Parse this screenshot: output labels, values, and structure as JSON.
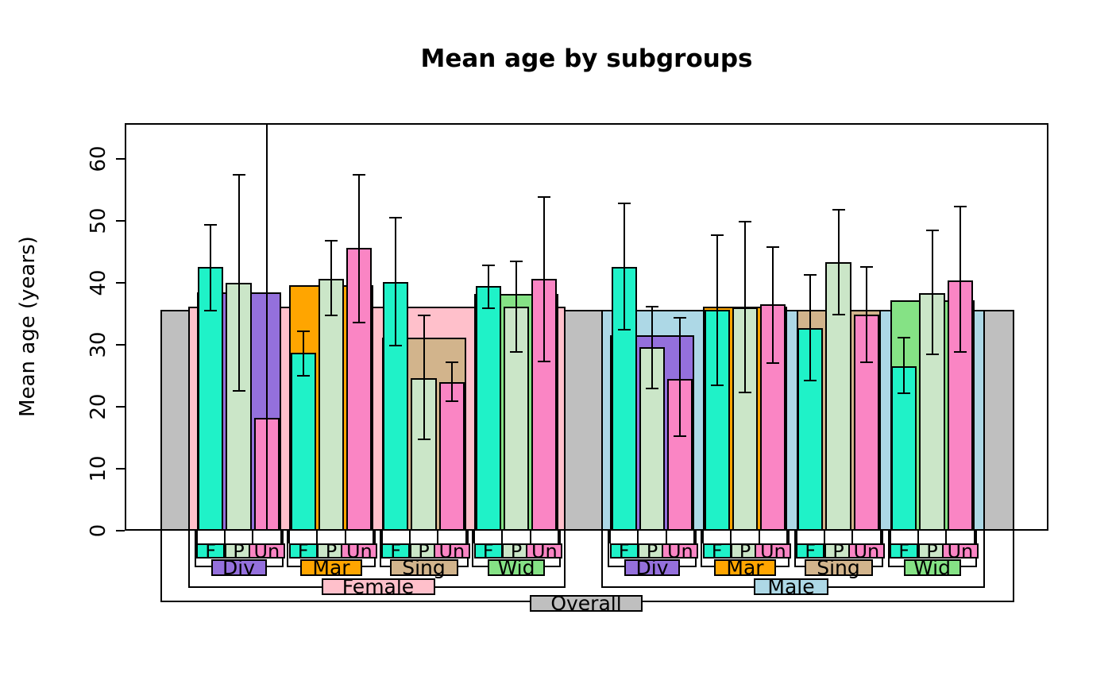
{
  "title": "Mean age by subgroups",
  "y_axis": {
    "label": "Mean age (years)",
    "tick_labels": [
      "0",
      "10",
      "20",
      "30",
      "40",
      "50",
      "60"
    ]
  },
  "chart_data": {
    "type": "bar",
    "title": "Mean age by subgroups",
    "ylabel": "Mean age (years)",
    "xlabel": "",
    "ylim": [
      0,
      65.8
    ],
    "yticks": [
      0,
      10,
      20,
      30,
      40,
      50,
      60
    ],
    "grid": false,
    "legend_position": "none",
    "description": "Nested hierarchical barplot: leaf bars F/P/Un with 95% CI whiskers, inside marital-status groups Div/Mar/Sing/Wid, inside sex groups Female/Male, over an Overall background bar",
    "overall": {
      "label": "Overall",
      "mean": 35.7
    },
    "sexes": [
      {
        "label": "Female",
        "mean": 36.2,
        "groups": [
          {
            "label": "Div",
            "mean": 38.4,
            "bars": [
              {
                "label": "F",
                "mean": 42.6,
                "ci": [
                  35.5,
                  49.4
                ],
                "ci_clipped": false
              },
              {
                "label": "P",
                "mean": 40.0,
                "ci": [
                  22.6,
                  57.5
                ],
                "ci_clipped": false
              },
              {
                "label": "Un",
                "mean": 18.2,
                "ci": [
                  0,
                  65.8
                ],
                "ci_clipped": true
              }
            ]
          },
          {
            "label": "Mar",
            "mean": 39.6,
            "bars": [
              {
                "label": "F",
                "mean": 28.7,
                "ci": [
                  25.0,
                  32.2
                ],
                "ci_clipped": false
              },
              {
                "label": "P",
                "mean": 40.6,
                "ci": [
                  34.8,
                  46.8
                ],
                "ci_clipped": false
              },
              {
                "label": "Un",
                "mean": 45.6,
                "ci": [
                  33.6,
                  57.5
                ],
                "ci_clipped": false
              }
            ]
          },
          {
            "label": "Sing",
            "mean": 31.2,
            "bars": [
              {
                "label": "F",
                "mean": 40.1,
                "ci": [
                  29.9,
                  50.5
                ],
                "ci_clipped": false
              },
              {
                "label": "P",
                "mean": 24.6,
                "ci": [
                  14.8,
                  34.7
                ],
                "ci_clipped": false
              },
              {
                "label": "Un",
                "mean": 24.0,
                "ci": [
                  20.9,
                  27.2
                ],
                "ci_clipped": false
              }
            ]
          },
          {
            "label": "Wid",
            "mean": 38.2,
            "bars": [
              {
                "label": "F",
                "mean": 39.5,
                "ci": [
                  35.9,
                  42.8
                ],
                "ci_clipped": false
              },
              {
                "label": "P",
                "mean": 36.2,
                "ci": [
                  28.9,
                  43.5
                ],
                "ci_clipped": false
              },
              {
                "label": "Un",
                "mean": 40.6,
                "ci": [
                  27.3,
                  53.9
                ],
                "ci_clipped": false
              }
            ]
          }
        ]
      },
      {
        "label": "Male",
        "mean": 35.6,
        "groups": [
          {
            "label": "Div",
            "mean": 31.6,
            "bars": [
              {
                "label": "F",
                "mean": 42.6,
                "ci": [
                  32.4,
                  52.8
                ],
                "ci_clipped": false
              },
              {
                "label": "P",
                "mean": 29.6,
                "ci": [
                  22.9,
                  36.2
                ],
                "ci_clipped": false
              },
              {
                "label": "Un",
                "mean": 24.5,
                "ci": [
                  15.3,
                  34.4
                ],
                "ci_clipped": false
              }
            ]
          },
          {
            "label": "Mar",
            "mean": 36.2,
            "bars": [
              {
                "label": "F",
                "mean": 35.6,
                "ci": [
                  23.5,
                  47.7
                ],
                "ci_clipped": false
              },
              {
                "label": "P",
                "mean": 36.0,
                "ci": [
                  22.3,
                  49.9
                ],
                "ci_clipped": false
              },
              {
                "label": "Un",
                "mean": 36.5,
                "ci": [
                  27.0,
                  45.8
                ],
                "ci_clipped": false
              }
            ]
          },
          {
            "label": "Sing",
            "mean": 35.7,
            "bars": [
              {
                "label": "F",
                "mean": 32.7,
                "ci": [
                  24.2,
                  41.3
                ],
                "ci_clipped": false
              },
              {
                "label": "P",
                "mean": 43.3,
                "ci": [
                  34.9,
                  51.8
                ],
                "ci_clipped": false
              },
              {
                "label": "Un",
                "mean": 34.9,
                "ci": [
                  27.2,
                  42.6
                ],
                "ci_clipped": false
              }
            ]
          },
          {
            "label": "Wid",
            "mean": 37.2,
            "bars": [
              {
                "label": "F",
                "mean": 26.5,
                "ci": [
                  22.2,
                  31.2
                ],
                "ci_clipped": false
              },
              {
                "label": "P",
                "mean": 38.3,
                "ci": [
                  28.4,
                  48.5
                ],
                "ci_clipped": false
              },
              {
                "label": "Un",
                "mean": 40.4,
                "ci": [
                  28.8,
                  52.3
                ],
                "ci_clipped": false
              }
            ]
          }
        ]
      }
    ],
    "colors": {
      "overall_bar": "#BFBFBF",
      "female_bar": "#FFC0CB",
      "male_bar": "#ADD8E6",
      "div_bar": "#9470DC",
      "mar_bar": "#FFA500",
      "sing_bar": "#D2B48C",
      "wid_bar": "#85E285",
      "f_bar": "#1FF2C8",
      "p_bar": "#CBE6C8",
      "un_bar": "#FA85C4",
      "axis": "#000000"
    }
  }
}
